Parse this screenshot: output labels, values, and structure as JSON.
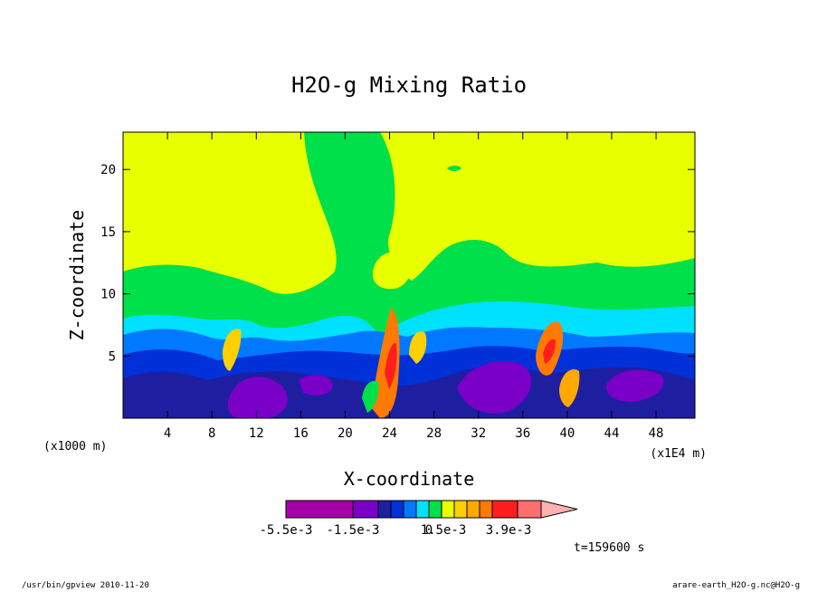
{
  "chart_data": {
    "type": "heatmap",
    "title": "H2O-g Mixing Ratio",
    "xlabel": "X-coordinate",
    "ylabel": "Z-coordinate",
    "x_scale_note": "(x1000 m)",
    "z_scale_note": "(x1E4 m)",
    "xlim": [
      0,
      51.5
    ],
    "ylim": [
      0,
      23
    ],
    "x_ticks": [
      4,
      8,
      12,
      16,
      20,
      24,
      28,
      32,
      36,
      40,
      44,
      48
    ],
    "y_ticks": [
      5,
      10,
      15,
      20
    ],
    "colorbar": {
      "colors": [
        "#a800a8",
        "#7a00c8",
        "#1e1ea0",
        "#0030d8",
        "#0078ff",
        "#00e0ff",
        "#00e04a",
        "#e8ff00",
        "#ffd000",
        "#ffa800",
        "#ff7a00",
        "#ff1e1e",
        "#ff6e6e",
        "#ffb0b0"
      ],
      "tick_labels": [
        "-5.5e-3",
        "-1.5e-3",
        "0",
        "1.5e-3",
        "3.9e-3"
      ]
    },
    "time_label": "t=159600 s"
  },
  "footer": {
    "left": "/usr/bin/gpview  2010-11-20",
    "right": "arare-earth_H2O-g.nc@H2O-g"
  }
}
